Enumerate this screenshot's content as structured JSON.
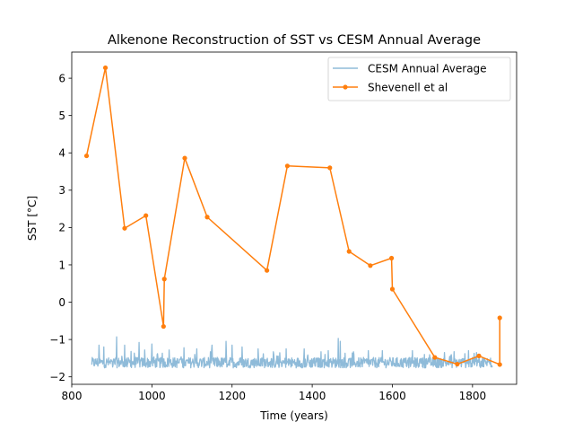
{
  "chart_data": {
    "type": "line",
    "title": "Alkenone Reconstruction of SST vs CESM Annual Average",
    "xlabel": "Time (years)",
    "ylabel": "SST [°C]",
    "xlim": [
      800,
      1910
    ],
    "ylim": [
      -2.2,
      6.7
    ],
    "xticks": [
      800,
      1000,
      1200,
      1400,
      1600,
      1800
    ],
    "yticks": [
      -2,
      -1,
      0,
      1,
      2,
      3,
      4,
      5,
      6
    ],
    "grid": false,
    "legend_position": "top-right",
    "series": [
      {
        "name": "CESM Annual Average",
        "color": "#1f77b4",
        "opacity": 0.5,
        "style": "noisy-line",
        "x_range": [
          850,
          1850
        ],
        "base": -1.62,
        "spikes": [
          {
            "x": 868,
            "y": -1.15
          },
          {
            "x": 880,
            "y": -1.2
          },
          {
            "x": 885,
            "y": -1.75
          },
          {
            "x": 912,
            "y": -0.93
          },
          {
            "x": 932,
            "y": -1.15
          },
          {
            "x": 948,
            "y": -1.32
          },
          {
            "x": 968,
            "y": -1.08
          },
          {
            "x": 982,
            "y": -1.28
          },
          {
            "x": 1000,
            "y": -1.12
          },
          {
            "x": 1043,
            "y": -1.28
          },
          {
            "x": 1080,
            "y": -1.22
          },
          {
            "x": 1112,
            "y": -1.25
          },
          {
            "x": 1150,
            "y": -1.15
          },
          {
            "x": 1185,
            "y": -1.05
          },
          {
            "x": 1200,
            "y": -1.15
          },
          {
            "x": 1225,
            "y": -1.2
          },
          {
            "x": 1265,
            "y": -1.25
          },
          {
            "x": 1335,
            "y": -1.25
          },
          {
            "x": 1380,
            "y": -1.25
          },
          {
            "x": 1440,
            "y": -1.3
          },
          {
            "x": 1465,
            "y": -0.97
          },
          {
            "x": 1470,
            "y": -1.05
          },
          {
            "x": 1540,
            "y": -1.3
          },
          {
            "x": 1575,
            "y": -1.3
          },
          {
            "x": 1650,
            "y": -1.3
          },
          {
            "x": 1680,
            "y": -1.4
          },
          {
            "x": 1730,
            "y": -1.35
          },
          {
            "x": 1790,
            "y": -1.3
          },
          {
            "x": 1810,
            "y": -1.35
          },
          {
            "x": 1845,
            "y": -1.5
          }
        ]
      },
      {
        "name": "Shevenell et al",
        "color": "#ff7f0e",
        "style": "line-markers",
        "points": [
          {
            "x": 837,
            "y": 3.92
          },
          {
            "x": 884,
            "y": 6.28
          },
          {
            "x": 932,
            "y": 1.98
          },
          {
            "x": 985,
            "y": 2.32
          },
          {
            "x": 1029,
            "y": -0.65
          },
          {
            "x": 1031,
            "y": 0.62
          },
          {
            "x": 1082,
            "y": 3.86
          },
          {
            "x": 1138,
            "y": 2.28
          },
          {
            "x": 1287,
            "y": 0.85
          },
          {
            "x": 1338,
            "y": 3.65
          },
          {
            "x": 1444,
            "y": 3.6
          },
          {
            "x": 1492,
            "y": 1.36
          },
          {
            "x": 1545,
            "y": 0.98
          },
          {
            "x": 1598,
            "y": 1.18
          },
          {
            "x": 1600,
            "y": 0.35
          },
          {
            "x": 1706,
            "y": -1.48
          },
          {
            "x": 1762,
            "y": -1.66
          },
          {
            "x": 1816,
            "y": -1.44
          },
          {
            "x": 1868,
            "y": -1.67
          },
          {
            "x": 1868,
            "y": -0.42
          }
        ]
      }
    ]
  }
}
